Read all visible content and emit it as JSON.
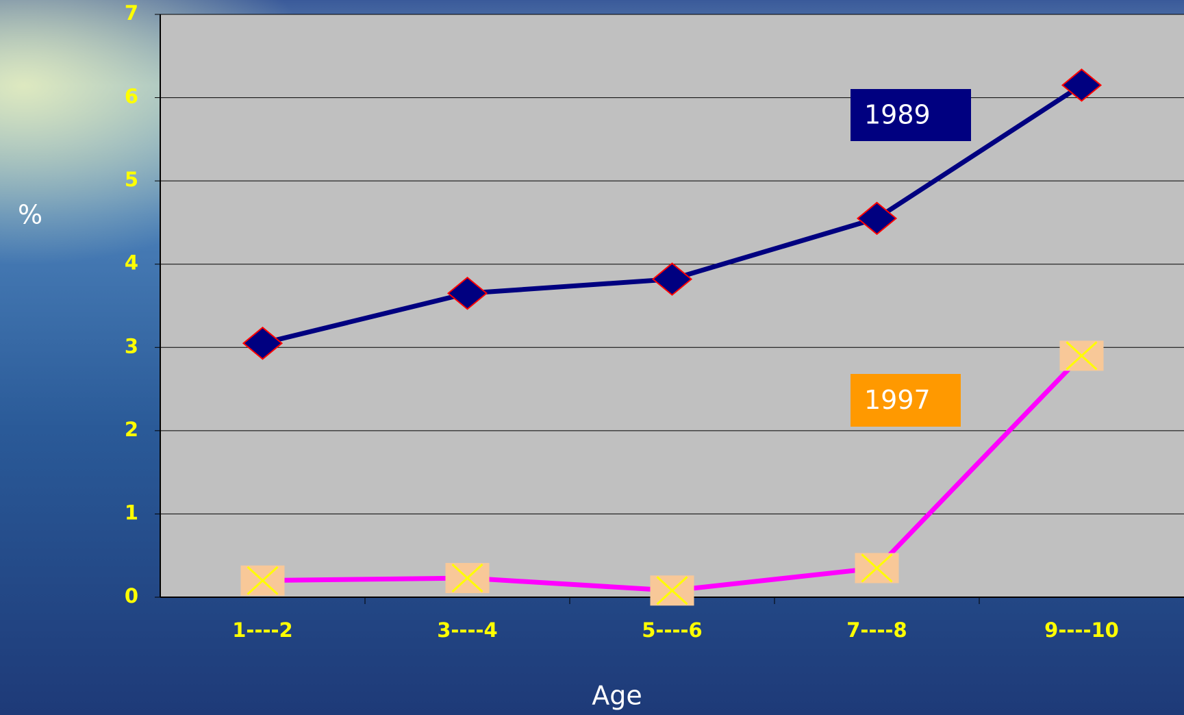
{
  "chart_data": {
    "type": "line",
    "y_label": "%",
    "x_label": "Age",
    "categories": [
      "1----2",
      "3----4",
      "5----6",
      "7----8",
      "9----10"
    ],
    "series": [
      {
        "name": "1989",
        "color": "#000080",
        "marker": "diamond",
        "marker_color": "#000080",
        "marker_edge": "#ff0000",
        "label_color": "#000080",
        "values": [
          3.05,
          3.65,
          3.82,
          4.55,
          6.15
        ]
      },
      {
        "name": "1997",
        "color": "#ff00ff",
        "marker": "cross-square",
        "marker_color": "#f8c898",
        "marker_edge": "#ffff00",
        "label_color": "#ff9900",
        "values": [
          0.2,
          0.23,
          0.08,
          0.35,
          2.9
        ]
      }
    ],
    "ylim": [
      0,
      7
    ],
    "yticks": [
      0,
      1,
      2,
      3,
      4,
      5,
      6,
      7
    ],
    "grid": true,
    "plot_color": "#c0c0c0"
  }
}
